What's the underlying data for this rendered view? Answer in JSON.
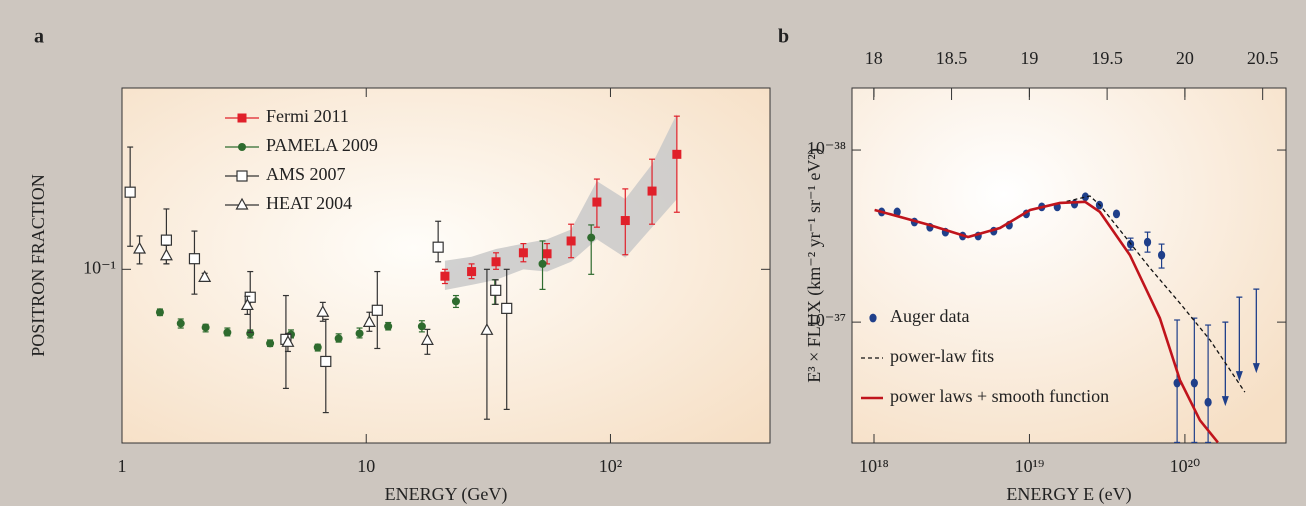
{
  "chart_data": [
    {
      "type": "scatter",
      "panel": "a",
      "xlabel": "ENERGY (GeV)",
      "ylabel": "POSITRON FRACTION",
      "log_x": true,
      "log_y": true,
      "xlim": [
        1,
        450
      ],
      "ylim": [
        0.021,
        0.51
      ],
      "xticks": [
        1,
        10,
        {
          "value": 100,
          "label": "10²"
        }
      ],
      "yticks": [
        {
          "value": 0.1,
          "label": "10⁻¹"
        }
      ],
      "legend": "upper left",
      "series": [
        {
          "name": "Fermi 2011",
          "color": "#e0202a",
          "marker": "filled-square",
          "x": [
            21,
            27,
            34,
            44,
            55,
            69,
            88,
            115,
            148,
            187
          ],
          "values": [
            0.094,
            0.098,
            0.107,
            0.116,
            0.115,
            0.129,
            0.183,
            0.155,
            0.202,
            0.281
          ],
          "err_low": [
            0.088,
            0.092,
            0.1,
            0.107,
            0.105,
            0.111,
            0.146,
            0.114,
            0.15,
            0.167
          ],
          "err_high": [
            0.1,
            0.105,
            0.116,
            0.126,
            0.126,
            0.15,
            0.225,
            0.206,
            0.269,
            0.396
          ],
          "band_color": "#c9c9c9",
          "band_low": [
            0.083,
            0.087,
            0.091,
            0.1,
            0.098,
            0.107,
            0.131,
            0.111,
            0.146,
            0.188
          ],
          "band_high": [
            0.108,
            0.112,
            0.12,
            0.126,
            0.131,
            0.143,
            0.221,
            0.188,
            0.257,
            0.404
          ]
        },
        {
          "name": "PAMELA 2009",
          "color": "#2e6b2e",
          "marker": "filled-circle",
          "x": [
            1.43,
            1.74,
            2.2,
            2.7,
            3.35,
            4.04,
            4.92,
            6.33,
            7.71,
            9.39,
            12.3,
            16.9,
            23.3,
            33.6,
            52.7,
            83.4
          ],
          "values": [
            0.068,
            0.0615,
            0.0593,
            0.0567,
            0.0562,
            0.0514,
            0.0557,
            0.0496,
            0.0537,
            0.0562,
            0.0599,
            0.0599,
            0.075,
            0.082,
            0.105,
            0.133
          ],
          "err_low": [
            0.066,
            0.059,
            0.057,
            0.055,
            0.054,
            0.05,
            0.054,
            0.048,
            0.052,
            0.054,
            0.058,
            0.057,
            0.071,
            0.073,
            0.0835,
            0.0956
          ],
          "err_high": [
            0.07,
            0.064,
            0.061,
            0.059,
            0.058,
            0.053,
            0.058,
            0.051,
            0.056,
            0.059,
            0.062,
            0.063,
            0.079,
            0.091,
            0.129,
            0.149
          ]
        },
        {
          "name": "AMS 2007",
          "color": "#333333",
          "marker": "open-square",
          "x": [
            1.08,
            1.52,
            1.98,
            3.35,
            4.69,
            6.83,
            11.1,
            19.7,
            33.9,
            37.6
          ],
          "values": [
            0.2,
            0.13,
            0.11,
            0.0778,
            0.0533,
            0.0437,
            0.0692,
            0.122,
            0.0828,
            0.0704
          ],
          "err_low": [
            0.123,
            0.105,
            0.08,
            0.0567,
            0.0343,
            0.0276,
            0.0491,
            0.107,
            0.073,
            0.0284
          ],
          "err_high": [
            0.3,
            0.172,
            0.141,
            0.098,
            0.079,
            0.0638,
            0.098,
            0.154,
            0.091,
            0.1
          ]
        },
        {
          "name": "HEAT 2004",
          "color": "#333333",
          "marker": "open-triangle",
          "x": [
            1.18,
            1.52,
            2.18,
            3.26,
            4.78,
            6.64,
            10.3,
            17.8,
            31.2
          ],
          "values": [
            0.12,
            0.113,
            0.093,
            0.0723,
            0.0519,
            0.068,
            0.0621,
            0.0528,
            0.0578
          ],
          "err_low": [
            0.105,
            0.105,
            0.0898,
            0.0667,
            0.0478,
            0.0627,
            0.0573,
            0.0466,
            0.026
          ],
          "err_high": [
            0.135,
            0.124,
            0.0965,
            0.0785,
            0.0562,
            0.0743,
            0.068,
            0.0583,
            0.1
          ]
        }
      ]
    },
    {
      "type": "scatter",
      "panel": "b",
      "xlabel": "ENERGY E (eV)",
      "ylabel": "E³ × FLUX (km⁻² yr⁻¹ sr⁻¹ eV²)",
      "log_x": true,
      "log_y": true,
      "xlim": [
        7.22e+17,
        4.47e+20
      ],
      "ylim": [
        5.04e-37,
        4.36e-39
      ],
      "xticks": [
        {
          "value": 1e+18,
          "label": "10¹⁸"
        },
        {
          "value": 1e+19,
          "label": "10¹⁹"
        },
        {
          "value": 1e+20,
          "label": "10²⁰"
        }
      ],
      "yticks": [
        {
          "value": 1e-38,
          "label": "10⁻³⁸"
        },
        {
          "value": 1e-37,
          "label": "10⁻³⁷"
        }
      ],
      "x2lim": [
        17.86,
        20.65
      ],
      "x2ticks": [
        18,
        18.5,
        19,
        19.5,
        20,
        20.5
      ],
      "legend": "lower left",
      "series": [
        {
          "name": "Auger data",
          "color": "#1f3f8a",
          "marker": "dot",
          "x": [
            1.12e+18,
            1.41e+18,
            1.82e+18,
            2.29e+18,
            2.88e+18,
            3.72e+18,
            4.68e+18,
            5.89e+18,
            7.41e+18,
            9.55e+18,
            1.2e+19,
            1.51e+19,
            1.95e+19,
            2.29e+19,
            2.82e+19,
            3.63e+19,
            4.47e+19,
            5.75e+19,
            7.08e+19,
            8.91e+19,
            1.15e+20,
            1.41e+20
          ],
          "values": [
            2.29e-38,
            2.29e-38,
            2.62e-38,
            2.81e-38,
            3e-38,
            3.16e-38,
            3.16e-38,
            2.96e-38,
            2.73e-38,
            2.35e-38,
            2.14e-38,
            2.14e-38,
            2.06e-38,
            1.87e-38,
            2.09e-38,
            2.35e-38,
            3.52e-38,
            3.43e-38,
            4.08e-38,
            2.26e-37,
            2.26e-37,
            2.92e-37
          ],
          "err_low": [
            null,
            null,
            null,
            null,
            null,
            null,
            null,
            null,
            null,
            null,
            null,
            null,
            null,
            null,
            null,
            null,
            3.25e-38,
            3e-38,
            3.52e-38,
            9.72e-38,
            9.48e-38,
            1.04e-37
          ],
          "err_high": [
            null,
            null,
            null,
            null,
            null,
            null,
            null,
            null,
            null,
            null,
            null,
            null,
            null,
            null,
            null,
            null,
            3.81e-38,
            3.92e-38,
            4.85e-38,
            5e-37,
            5e-37,
            5e-37
          ],
          "upper_limits": {
            "x": [
              1.82e+20,
              2.24e+20,
              2.88e+20
            ],
            "values": [
              1e-37,
              7.16e-38,
              6.43e-38
            ]
          }
        },
        {
          "name": "power-law fits",
          "color": "#111111",
          "marker": "dashed-line",
          "x": [
            1.01e+18,
            2.29e+18,
            4.03e+18,
            6.46e+18,
            1.01e+19,
            1.57e+19,
            2.45e+19,
            2.84e+19,
            3.82e+19,
            5.96e+19,
            9.29e+19,
            1.45e+20,
            2.43e+20
          ],
          "values": [
            2.23e-38,
            2.73e-38,
            3.2e-38,
            2.84e-38,
            2.23e-38,
            2.03e-38,
            1.85e-38,
            2.09e-38,
            2.92e-38,
            4.85e-38,
            7.76e-38,
            1.27e-37,
            2.55e-37
          ]
        },
        {
          "name": "power laws + smooth function",
          "color": "#c0141c",
          "marker": "line",
          "x": [
            1.01e+18,
            2.29e+18,
            4.03e+18,
            6.46e+18,
            1.01e+19,
            1.57e+19,
            2.28e+19,
            2.84e+19,
            4.43e+19,
            6.9e+19,
            9.29e+19,
            1.25e+20,
            1.63e+20
          ],
          "values": [
            2.23e-38,
            2.73e-38,
            3.2e-38,
            2.84e-38,
            2.23e-38,
            2.03e-38,
            2e-38,
            2.29e-38,
            4.08e-38,
            9.48e-38,
            2.17e-37,
            3.72e-37,
            5e-37
          ]
        }
      ]
    }
  ]
}
